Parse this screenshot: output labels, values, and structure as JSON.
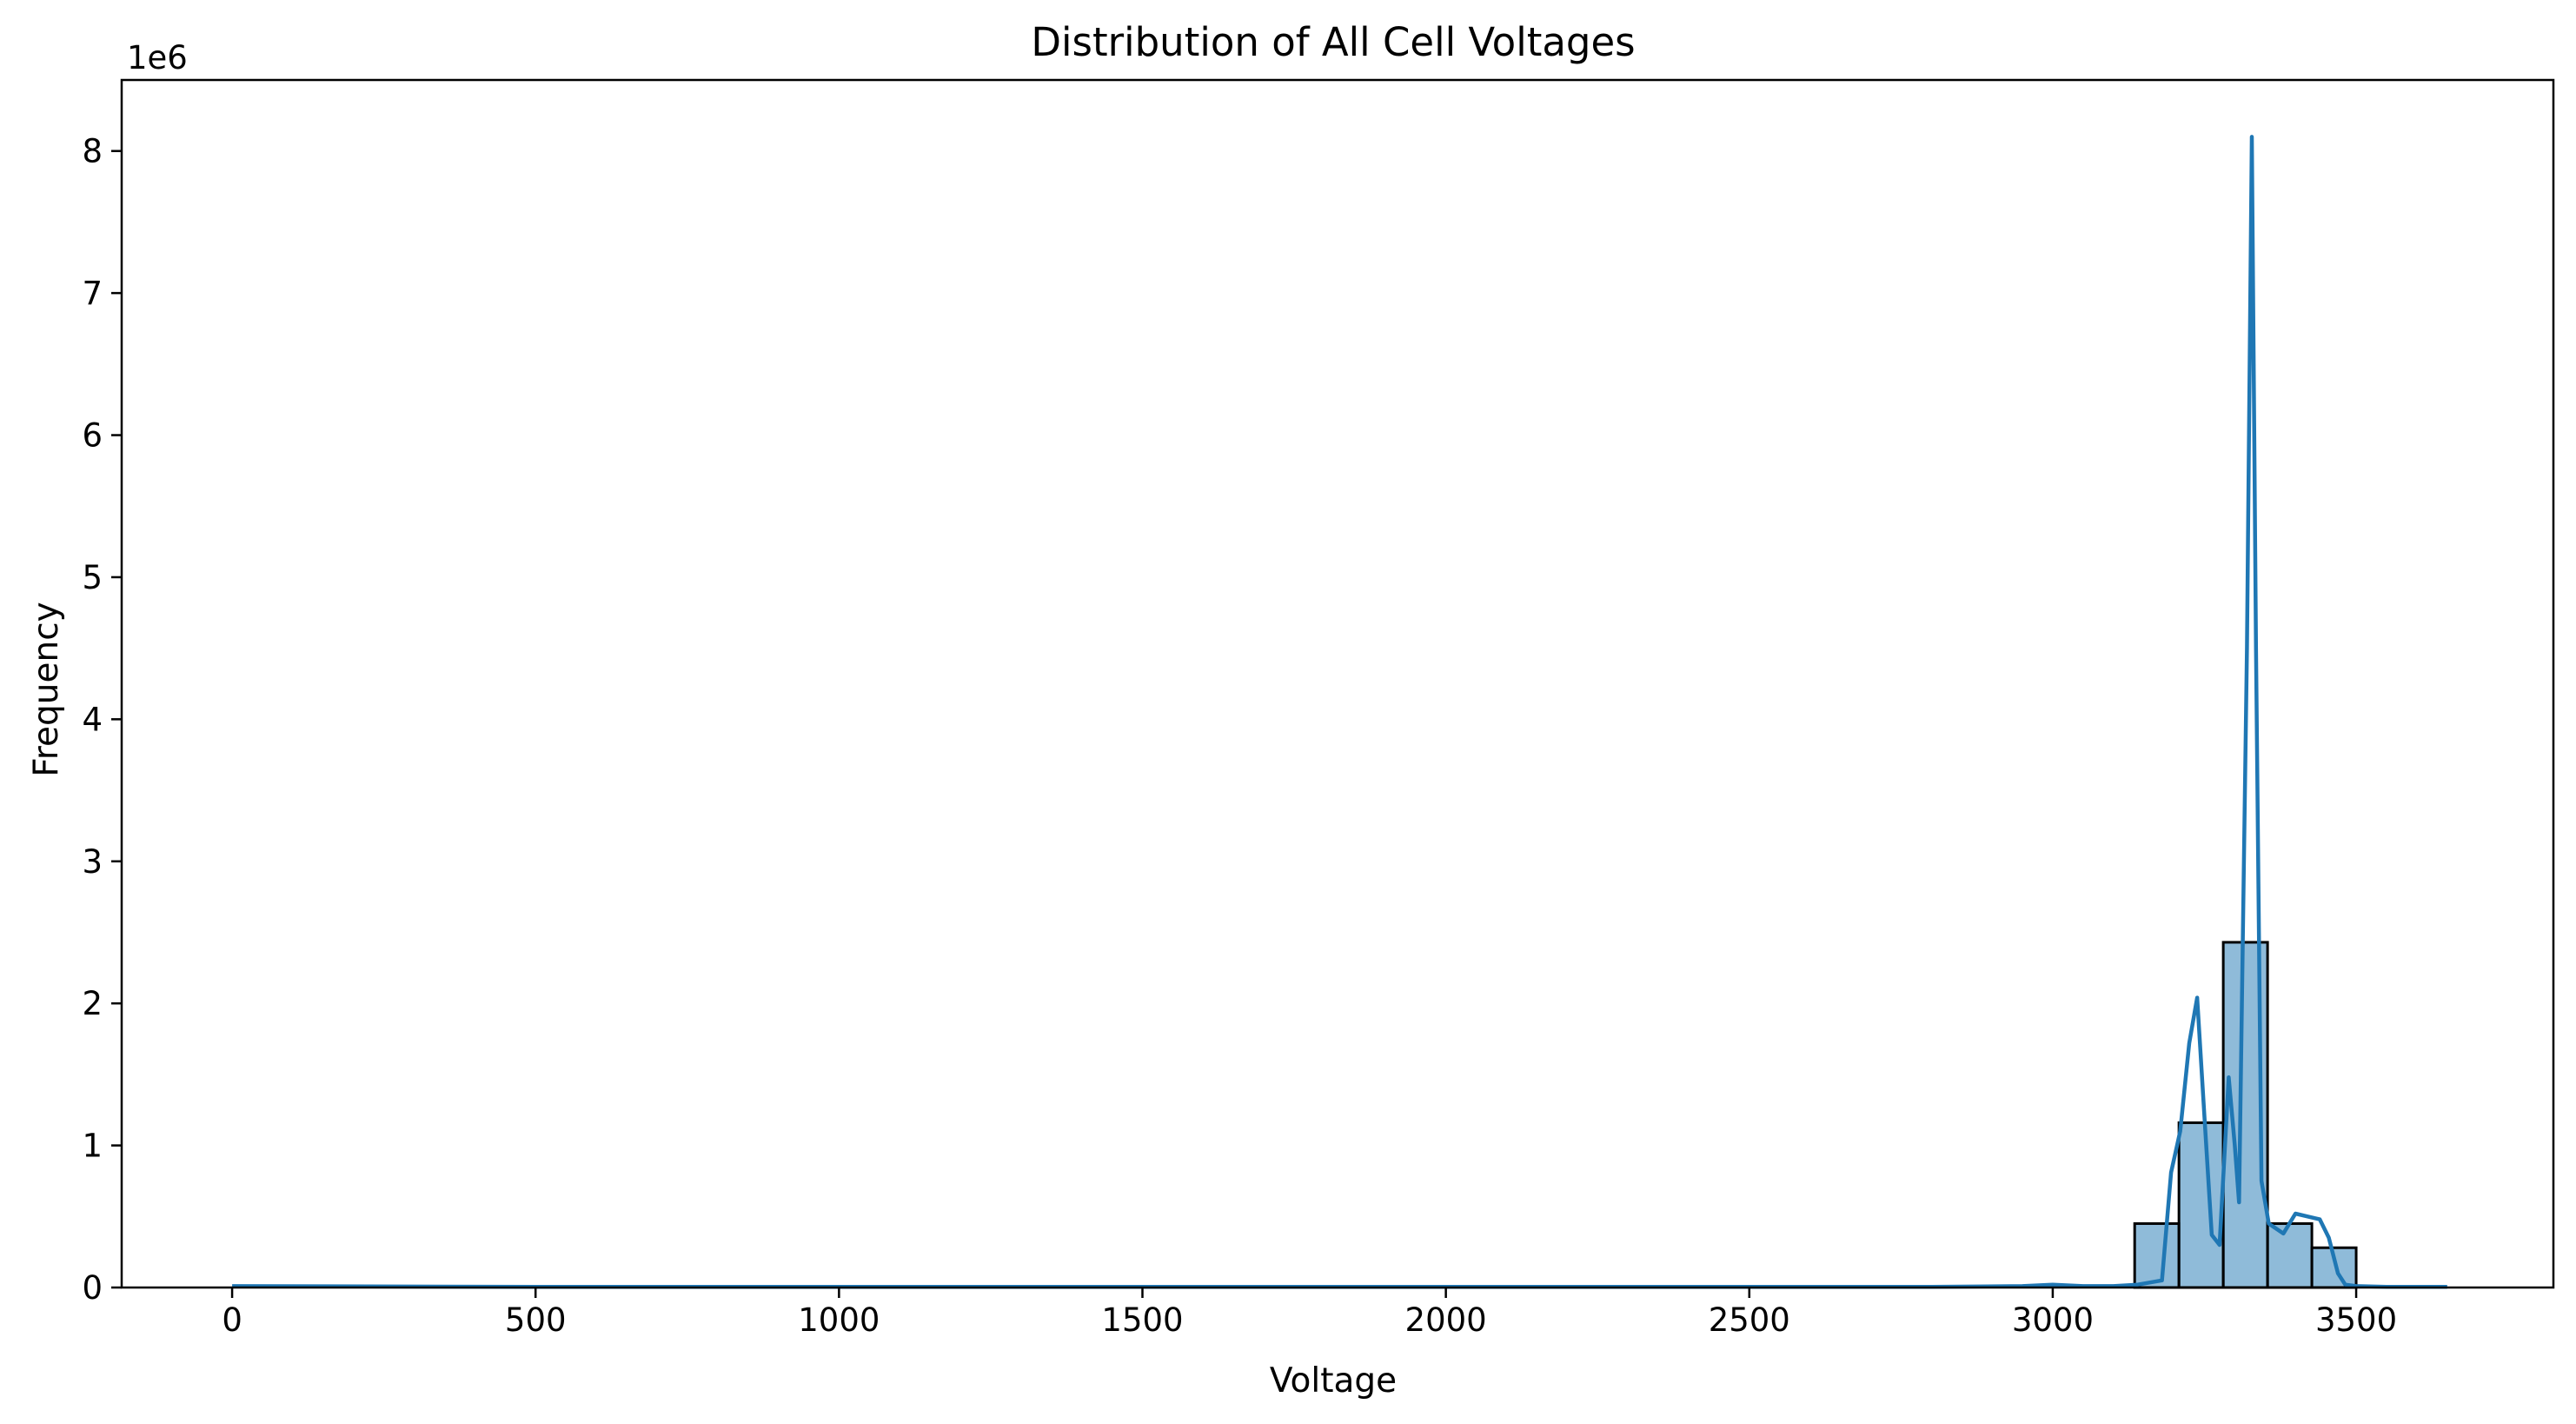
{
  "chart_data": {
    "type": "bar",
    "title": "Distribution of All Cell Voltages",
    "xlabel": "Voltage",
    "ylabel": "Frequency",
    "y_offset_label": "1e6",
    "y_multiplier": 1000000,
    "xlim": [
      -182,
      3825
    ],
    "ylim": [
      0,
      8.5
    ],
    "xticks": [
      0,
      500,
      1000,
      1500,
      2000,
      2500,
      3000,
      3500
    ],
    "yticks": [
      0,
      1,
      2,
      3,
      4,
      5,
      6,
      7,
      8
    ],
    "grid": false,
    "legend": "none",
    "bar_color": "#1f77b4",
    "line_color": "#1f77b4",
    "bins": [
      {
        "x0": 3135,
        "x1": 3208,
        "value": 0.45
      },
      {
        "x0": 3208,
        "x1": 3281,
        "value": 1.16
      },
      {
        "x0": 3281,
        "x1": 3354,
        "value": 2.43
      },
      {
        "x0": 3354,
        "x1": 3427,
        "value": 0.45
      },
      {
        "x0": 3427,
        "x1": 3500,
        "value": 0.28
      }
    ],
    "kde": {
      "x": [
        0,
        500,
        1000,
        1500,
        2000,
        2500,
        2800,
        2950,
        3000,
        3050,
        3100,
        3140,
        3180,
        3195,
        3210,
        3225,
        3238,
        3250,
        3262,
        3275,
        3290,
        3300,
        3307,
        3320,
        3328,
        3335,
        3344,
        3356,
        3380,
        3400,
        3420,
        3440,
        3455,
        3470,
        3482,
        3500,
        3550,
        3650
      ],
      "y": [
        0.01,
        0.005,
        0.005,
        0.005,
        0.005,
        0.005,
        0.005,
        0.01,
        0.02,
        0.01,
        0.01,
        0.02,
        0.05,
        0.81,
        1.1,
        1.72,
        2.04,
        1.2,
        0.37,
        0.3,
        1.48,
        1.0,
        0.6,
        4.5,
        8.1,
        4.5,
        0.75,
        0.45,
        0.38,
        0.52,
        0.5,
        0.48,
        0.35,
        0.1,
        0.02,
        0.01,
        0.005,
        0.005
      ]
    }
  }
}
